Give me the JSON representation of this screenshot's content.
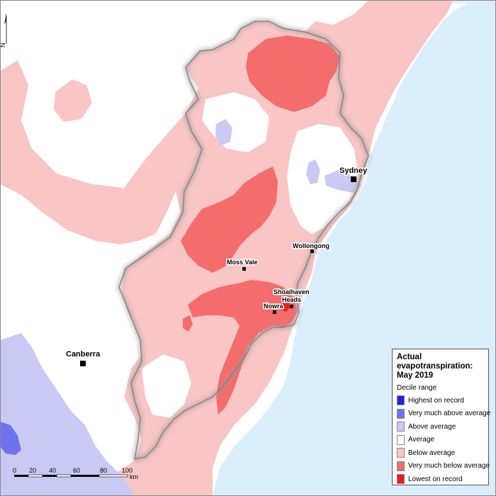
{
  "map": {
    "colors": {
      "ocean": "#dbeefc",
      "land": "#ffffff",
      "highest_on_record": "#1a23e0",
      "very_much_above_average": "#6e72ee",
      "above_average": "#c9c9f4",
      "average": "#ffffff",
      "below_average": "#f9c5c5",
      "very_much_below_average": "#f46c6c",
      "lowest_on_record": "#ee1c1c",
      "catchment_outline": "#7a7a7a"
    },
    "north_arrow_label": "N",
    "places": {
      "sydney": "Sydney",
      "wollongong": "Wollongong",
      "moss_vale": "Moss Vale",
      "shoalhaven_heads_line1": "Shoalhaven",
      "shoalhaven_heads_line2": "Heads",
      "nowra": "Nowra",
      "canberra": "Canberra"
    },
    "scale_bar": {
      "ticks": [
        "0",
        "20",
        "40",
        "60",
        "80",
        "100"
      ],
      "unit": "km"
    }
  },
  "legend": {
    "title": "Actual evapotranspiration: May 2019",
    "subtitle": "Decile range",
    "items": [
      {
        "label": "Highest on record",
        "color": "#1a23e0"
      },
      {
        "label": "Very much above average",
        "color": "#6e72ee"
      },
      {
        "label": "Above average",
        "color": "#c9c9f4"
      },
      {
        "label": "Average",
        "color": "#ffffff"
      },
      {
        "label": "Below average",
        "color": "#f9c5c5"
      },
      {
        "label": "Very much below average",
        "color": "#f46c6c"
      },
      {
        "label": "Lowest on record",
        "color": "#ee1c1c"
      }
    ]
  }
}
